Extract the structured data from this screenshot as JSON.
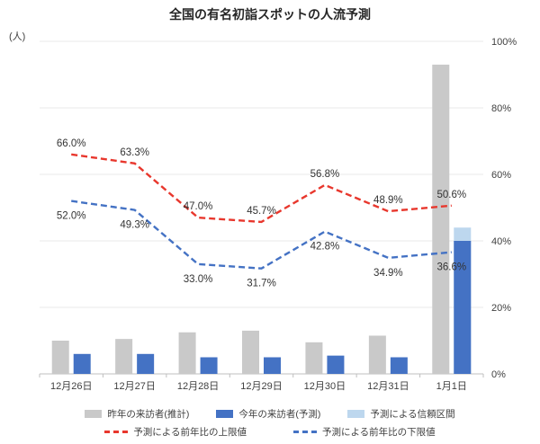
{
  "chart_data": {
    "type": "combo-bar-line",
    "title": "全国の有名初詣スポットの人流予測",
    "left_axis_label": "(人)",
    "categories": [
      "12月26日",
      "12月27日",
      "12月28日",
      "12月29日",
      "12月30日",
      "12月31日",
      "1月1日"
    ],
    "bar_series": [
      {
        "name": "昨年の来訪者(推計)",
        "color": "#c9c9c9",
        "values_pct_of_right_axis": [
          10,
          10.5,
          12.5,
          13,
          9.5,
          11.5,
          93
        ]
      },
      {
        "name": "予測による信頼区間",
        "color": "#bdd7ee",
        "values_pct_of_right_axis": [
          null,
          null,
          null,
          null,
          null,
          null,
          44
        ]
      },
      {
        "name": "今年の来訪者(予測)",
        "color": "#4472c4",
        "values_pct_of_right_axis": [
          6,
          6,
          5,
          5,
          5.5,
          5,
          40
        ]
      }
    ],
    "line_series": [
      {
        "name": "予測による前年比の上限値",
        "color": "#e8372d",
        "dash": "dashed",
        "label_position": "above",
        "values": [
          66.0,
          63.3,
          47.0,
          45.7,
          56.8,
          48.9,
          50.6
        ]
      },
      {
        "name": "予測による前年比の下限値",
        "color": "#4472c4",
        "dash": "dashed",
        "label_position": "below",
        "values": [
          52.0,
          49.3,
          33.0,
          31.7,
          42.8,
          34.9,
          36.6
        ]
      }
    ],
    "right_axis": {
      "min": 0,
      "max": 100,
      "ticks": [
        "0%",
        "20%",
        "40%",
        "60%",
        "80%",
        "100%"
      ]
    },
    "grid": true,
    "legend_position": "bottom"
  }
}
